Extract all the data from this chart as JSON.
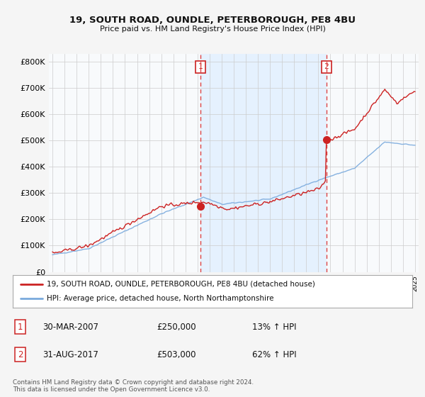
{
  "title": "19, SOUTH ROAD, OUNDLE, PETERBOROUGH, PE8 4BU",
  "subtitle": "Price paid vs. HM Land Registry's House Price Index (HPI)",
  "legend_line1": "19, SOUTH ROAD, OUNDLE, PETERBOROUGH, PE8 4BU (detached house)",
  "legend_line2": "HPI: Average price, detached house, North Northamptonshire",
  "footnote": "Contains HM Land Registry data © Crown copyright and database right 2024.\nThis data is licensed under the Open Government Licence v3.0.",
  "transaction1_date": "30-MAR-2007",
  "transaction1_price": "£250,000",
  "transaction1_hpi": "13% ↑ HPI",
  "transaction2_date": "31-AUG-2017",
  "transaction2_price": "£503,000",
  "transaction2_hpi": "62% ↑ HPI",
  "marker1_x": 2007.24,
  "marker1_y": 250000,
  "marker2_x": 2017.67,
  "marker2_y": 503000,
  "vline1_x": 2007.24,
  "vline2_x": 2017.67,
  "red_color": "#cc2222",
  "blue_color": "#7aaadd",
  "vline_color": "#dd4444",
  "shade_color": "#ddeeff",
  "ylim": [
    0,
    830000
  ],
  "xlim_start": 1994.7,
  "xlim_end": 2025.3,
  "bg_color": "#f5f5f5",
  "plot_bg_color": "#f8fafc",
  "grid_color": "#cccccc"
}
